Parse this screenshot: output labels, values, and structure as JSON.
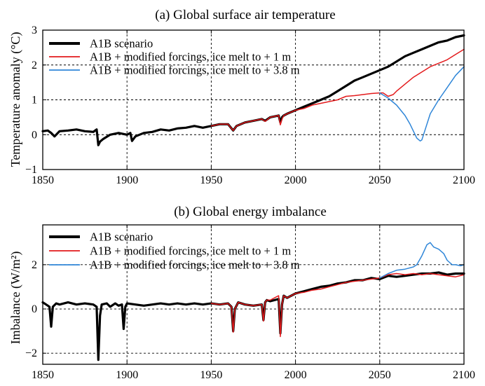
{
  "chart_data": [
    {
      "type": "line",
      "title": "(a) Global surface air temperature",
      "xlabel": "",
      "ylabel": "Temperature anomaly (°C)",
      "xlim": [
        1850,
        2100
      ],
      "ylim": [
        -1,
        3
      ],
      "xticks": [
        1850,
        1900,
        1950,
        2000,
        2050,
        2100
      ],
      "yticks": [
        -1,
        0,
        1,
        2,
        3
      ],
      "grid": true,
      "legend_position": "top-left",
      "series": [
        {
          "name": "A1B scenario",
          "color": "#000000",
          "x": [
            1850,
            1853,
            1855,
            1857,
            1860,
            1865,
            1870,
            1875,
            1880,
            1882,
            1883,
            1884,
            1886,
            1890,
            1895,
            1900,
            1902,
            1903,
            1905,
            1910,
            1915,
            1920,
            1925,
            1930,
            1935,
            1940,
            1945,
            1950,
            1955,
            1960,
            1963,
            1965,
            1970,
            1975,
            1980,
            1982,
            1985,
            1990,
            1991,
            1992,
            1993,
            1995,
            2000,
            2005,
            2010,
            2015,
            2020,
            2025,
            2030,
            2035,
            2040,
            2045,
            2050,
            2055,
            2060,
            2065,
            2070,
            2075,
            2080,
            2085,
            2090,
            2095,
            2100
          ],
          "values": [
            0.1,
            0.12,
            0.05,
            -0.05,
            0.1,
            0.12,
            0.15,
            0.1,
            0.08,
            0.15,
            -0.3,
            -0.2,
            -0.12,
            0.0,
            0.05,
            0.0,
            0.05,
            -0.18,
            -0.05,
            0.05,
            0.08,
            0.15,
            0.12,
            0.18,
            0.2,
            0.25,
            0.2,
            0.25,
            0.3,
            0.3,
            0.12,
            0.25,
            0.35,
            0.4,
            0.45,
            0.4,
            0.5,
            0.55,
            0.35,
            0.5,
            0.55,
            0.6,
            0.7,
            0.8,
            0.9,
            1.0,
            1.1,
            1.25,
            1.4,
            1.55,
            1.65,
            1.75,
            1.85,
            1.95,
            2.1,
            2.25,
            2.35,
            2.45,
            2.55,
            2.65,
            2.7,
            2.8,
            2.85
          ]
        },
        {
          "name": "A1B + modified forcings, ice melt to + 1 m",
          "color": "#e31a1c",
          "x": [
            1950,
            1955,
            1960,
            1963,
            1965,
            1970,
            1975,
            1980,
            1982,
            1985,
            1990,
            1991,
            1992,
            1993,
            1995,
            2000,
            2005,
            2010,
            2015,
            2020,
            2025,
            2030,
            2035,
            2040,
            2045,
            2050,
            2052,
            2055,
            2058,
            2060,
            2065,
            2070,
            2075,
            2080,
            2085,
            2090,
            2095,
            2100
          ],
          "values": [
            0.25,
            0.3,
            0.3,
            0.12,
            0.25,
            0.35,
            0.4,
            0.45,
            0.38,
            0.5,
            0.55,
            0.28,
            0.45,
            0.55,
            0.6,
            0.7,
            0.75,
            0.85,
            0.9,
            0.95,
            1.0,
            1.1,
            1.12,
            1.15,
            1.18,
            1.2,
            1.2,
            1.1,
            1.15,
            1.25,
            1.45,
            1.65,
            1.8,
            1.95,
            2.05,
            2.15,
            2.3,
            2.45
          ]
        },
        {
          "name": "A1B + modified forcings, ice melt to + 3.8 m",
          "color": "#2f86d8",
          "x": [
            2050,
            2055,
            2060,
            2065,
            2068,
            2070,
            2072,
            2074,
            2075,
            2076,
            2078,
            2080,
            2085,
            2090,
            2095,
            2100
          ],
          "values": [
            1.2,
            1.05,
            0.85,
            0.55,
            0.3,
            0.1,
            -0.1,
            -0.18,
            -0.15,
            0.0,
            0.3,
            0.6,
            1.0,
            1.35,
            1.7,
            1.95
          ]
        }
      ]
    },
    {
      "type": "line",
      "title": "(b) Global energy imbalance",
      "xlabel": "",
      "ylabel": "Imbalance (W/m²)",
      "xlim": [
        1850,
        2100
      ],
      "ylim": [
        -2.5,
        3.8
      ],
      "xticks": [
        1850,
        1900,
        1950,
        2000,
        2050,
        2100
      ],
      "yticks": [
        -2,
        0,
        2
      ],
      "grid": true,
      "legend_position": "top-left",
      "series": [
        {
          "name": "A1B scenario",
          "color": "#000000",
          "x": [
            1850,
            1852,
            1854,
            1855,
            1856,
            1858,
            1860,
            1865,
            1870,
            1875,
            1880,
            1882,
            1883,
            1884,
            1885,
            1888,
            1890,
            1893,
            1895,
            1897,
            1898,
            1899,
            1900,
            1905,
            1910,
            1915,
            1920,
            1925,
            1930,
            1935,
            1940,
            1945,
            1950,
            1955,
            1960,
            1962,
            1963,
            1964,
            1966,
            1970,
            1975,
            1980,
            1981,
            1982,
            1983,
            1985,
            1990,
            1991,
            1992,
            1993,
            1995,
            2000,
            2005,
            2010,
            2015,
            2020,
            2025,
            2030,
            2035,
            2040,
            2045,
            2050,
            2055,
            2060,
            2065,
            2070,
            2075,
            2080,
            2085,
            2090,
            2095,
            2100
          ],
          "values": [
            0.3,
            0.2,
            0.1,
            -0.8,
            0.1,
            0.25,
            0.2,
            0.3,
            0.2,
            0.25,
            0.2,
            0.1,
            -2.3,
            -0.3,
            0.2,
            0.25,
            0.1,
            0.25,
            0.15,
            0.2,
            -0.9,
            0.1,
            0.25,
            0.2,
            0.15,
            0.2,
            0.25,
            0.2,
            0.25,
            0.2,
            0.25,
            0.2,
            0.25,
            0.2,
            0.25,
            0.1,
            -1.0,
            0.0,
            0.3,
            0.2,
            0.15,
            0.2,
            -0.5,
            0.3,
            0.4,
            0.35,
            0.45,
            -1.1,
            0.2,
            0.6,
            0.5,
            0.7,
            0.8,
            0.9,
            1.0,
            1.05,
            1.15,
            1.2,
            1.3,
            1.3,
            1.4,
            1.35,
            1.5,
            1.45,
            1.5,
            1.55,
            1.6,
            1.6,
            1.65,
            1.55,
            1.6,
            1.6
          ]
        },
        {
          "name": "A1B + modified forcings, ice melt to + 1 m",
          "color": "#e31a1c",
          "x": [
            1950,
            1955,
            1960,
            1962,
            1963,
            1964,
            1966,
            1970,
            1975,
            1980,
            1981,
            1982,
            1983,
            1985,
            1990,
            1991,
            1992,
            1993,
            1995,
            2000,
            2005,
            2010,
            2015,
            2020,
            2025,
            2030,
            2035,
            2040,
            2045,
            2050,
            2055,
            2060,
            2065,
            2070,
            2075,
            2080,
            2085,
            2090,
            2095,
            2100
          ],
          "values": [
            0.25,
            0.2,
            0.25,
            0.1,
            -1.05,
            0.0,
            0.3,
            0.2,
            0.15,
            0.2,
            -0.55,
            0.3,
            0.4,
            0.4,
            0.6,
            -1.25,
            0.2,
            0.6,
            0.5,
            0.7,
            0.75,
            0.85,
            0.9,
            1.0,
            1.1,
            1.2,
            1.25,
            1.3,
            1.35,
            1.4,
            1.55,
            1.6,
            1.55,
            1.6,
            1.55,
            1.6,
            1.55,
            1.5,
            1.45,
            1.55
          ]
        },
        {
          "name": "A1B + modified forcings, ice melt to + 3.8 m",
          "color": "#2f86d8",
          "x": [
            2050,
            2055,
            2060,
            2065,
            2070,
            2072,
            2075,
            2078,
            2080,
            2082,
            2085,
            2088,
            2090,
            2093,
            2095,
            2098,
            2100
          ],
          "values": [
            1.4,
            1.6,
            1.75,
            1.8,
            1.9,
            2.0,
            2.4,
            2.9,
            3.0,
            2.8,
            2.7,
            2.5,
            2.2,
            2.0,
            2.0,
            1.95,
            2.0
          ]
        }
      ]
    }
  ]
}
